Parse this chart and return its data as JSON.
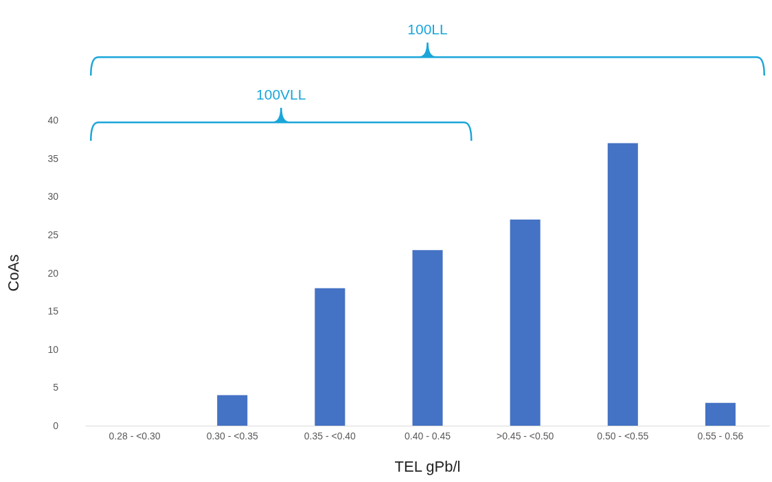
{
  "chart_data": {
    "type": "bar",
    "xlabel": "TEL gPb/l",
    "ylabel": "CoAs",
    "categories": [
      "0.28 - <0.30",
      "0.30 - <0.35",
      "0.35 - <0.40",
      "0.40 - 0.45",
      ">0.45 - <0.50",
      "0.50 - <0.55",
      "0.55 - 0.56"
    ],
    "values": [
      0,
      4,
      18,
      23,
      27,
      37,
      3
    ],
    "color": "#4472c4",
    "ylim": [
      0,
      40
    ],
    "yticks": [
      0,
      5,
      10,
      15,
      20,
      25,
      30,
      35,
      40
    ],
    "grid": false,
    "annotations": [
      "100LL",
      "100VLL"
    ]
  }
}
